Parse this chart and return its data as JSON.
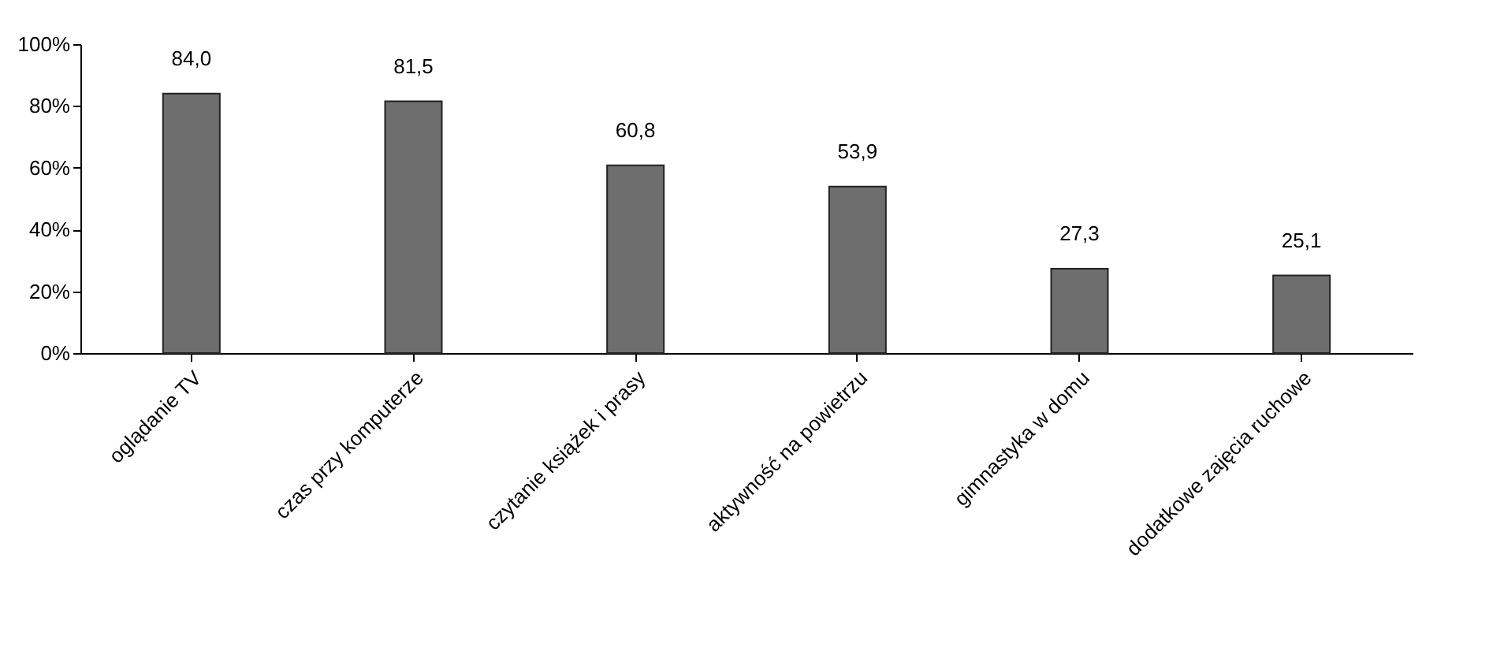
{
  "chart_data": {
    "type": "bar",
    "categories": [
      "oglądanie TV",
      "czas przy komputerze",
      "czytanie książek i prasy",
      "aktywność na powietrzu",
      "gimnastyka w domu",
      "dodatkowe zajęcia ruchowe"
    ],
    "values": [
      84.0,
      81.5,
      60.8,
      53.9,
      27.3,
      25.1
    ],
    "value_labels": [
      "84,0",
      "81,5",
      "60,8",
      "53,9",
      "27,3",
      "25,1"
    ],
    "color": "#6e6e6e",
    "ylim": [
      0,
      100
    ],
    "yticks": [
      {
        "value": 0,
        "label": "0%"
      },
      {
        "value": 20,
        "label": "20%"
      },
      {
        "value": 40,
        "label": "40%"
      },
      {
        "value": 60,
        "label": "60%"
      },
      {
        "value": 80,
        "label": "80%"
      },
      {
        "value": 100,
        "label": "100%"
      }
    ]
  }
}
